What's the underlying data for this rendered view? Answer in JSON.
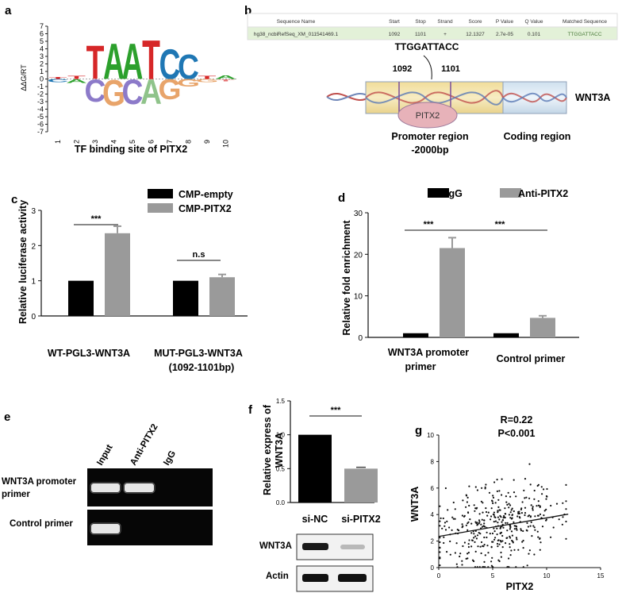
{
  "panels": {
    "a": {
      "label": "a",
      "ylabel": "ΔΔG/RT",
      "xlabel": "TF binding site of PITX2",
      "yticks": [
        "7",
        "6",
        "5",
        "4",
        "3",
        "2",
        "1",
        "0",
        "-1",
        "-2",
        "-3",
        "-4",
        "-5",
        "-6",
        "-7"
      ],
      "xticks": [
        "1",
        "2",
        "3",
        "4",
        "5",
        "6",
        "7",
        "8",
        "9",
        "10"
      ],
      "logo_top": [
        {
          "pos": 1,
          "letter": "T",
          "color": "#d62728",
          "height": 0.25
        },
        {
          "pos": 2,
          "letter": "T",
          "color": "#d62728",
          "height": 0.4
        },
        {
          "pos": 3,
          "letter": "T",
          "color": "#d62728",
          "height": 4.5
        },
        {
          "pos": 4,
          "letter": "A",
          "color": "#2ca02c",
          "height": 4.8
        },
        {
          "pos": 5,
          "letter": "A",
          "color": "#2ca02c",
          "height": 4.8
        },
        {
          "pos": 6,
          "letter": "T",
          "color": "#d62728",
          "height": 5.3
        },
        {
          "pos": 7,
          "letter": "C",
          "color": "#1f77b4",
          "height": 4.0
        },
        {
          "pos": 8,
          "letter": "C",
          "color": "#1f77b4",
          "height": 3.3
        },
        {
          "pos": 9,
          "letter": "T",
          "color": "#d62728",
          "height": 0.4
        },
        {
          "pos": 10,
          "letter": "A",
          "color": "#2ca02c",
          "height": 0.5
        }
      ],
      "logo_bottom": [
        {
          "pos": 1,
          "letter": "C",
          "color": "#1f77b4",
          "height": 0.4
        },
        {
          "pos": 2,
          "letter": "A",
          "color": "#2ca02c",
          "height": 0.5
        },
        {
          "pos": 3,
          "letter": "C",
          "color": "#8c7ac9",
          "height": 3.0
        },
        {
          "pos": 4,
          "letter": "G",
          "color": "#e8a46a",
          "height": 3.5
        },
        {
          "pos": 5,
          "letter": "C",
          "color": "#8c7ac9",
          "height": 3.3
        },
        {
          "pos": 6,
          "letter": "A",
          "color": "#8fc38a",
          "height": 3.3
        },
        {
          "pos": 7,
          "letter": "G",
          "color": "#e8a46a",
          "height": 2.7
        },
        {
          "pos": 8,
          "letter": "G",
          "color": "#e8a46a",
          "height": 1.0
        },
        {
          "pos": 9,
          "letter": "G",
          "color": "#e8a46a",
          "height": 0.4
        },
        {
          "pos": 10,
          "letter": "T",
          "color": "#e57373",
          "height": 0.3
        }
      ]
    },
    "b": {
      "label": "b",
      "table_headers": [
        "Sequence Name",
        "Start",
        "Stop",
        "Strand",
        "Score",
        "P Value",
        "Q Value",
        "Matched Sequence"
      ],
      "table_row": [
        "hg38_ncbiRefSeq_XM_011541469.1",
        "1092",
        "1101",
        "+",
        "12.1327",
        "2.7e-05",
        "0.101",
        "TTGGATTACC"
      ],
      "sequence": "TTGGATTACC",
      "start": "1092",
      "stop": "1101",
      "protein": "PITX2",
      "gene": "WNT3A",
      "promoter_label": "Promoter region",
      "promoter_size": "-2000bp",
      "coding_label": "Coding region"
    },
    "c": {
      "label": "c",
      "ylabel": "Relative luciferase activity",
      "legend": [
        "CMP-empty",
        "CMP-PITX2"
      ],
      "significance": [
        "***",
        "n.s"
      ],
      "group1_label": "WT-PGL3-WNT3A",
      "group2_label": "MUT-PGL3-WNT3A",
      "group2_sublabel": "(1092-1101bp)",
      "chart_data": {
        "type": "bar",
        "categories": [
          "WT-PGL3-WNT3A",
          "MUT-PGL3-WNT3A (1092-1101bp)"
        ],
        "series": [
          {
            "name": "CMP-empty",
            "values": [
              1.0,
              1.0
            ],
            "errors": [
              0,
              0
            ],
            "color": "#000000"
          },
          {
            "name": "CMP-PITX2",
            "values": [
              2.35,
              1.1
            ],
            "errors": [
              0.2,
              0.08
            ],
            "color": "#9a9a9a"
          }
        ],
        "ylabel": "Relative luciferase activity",
        "ylim": [
          0,
          3
        ],
        "yticks": [
          "0",
          "1",
          "2",
          "3"
        ]
      }
    },
    "d": {
      "label": "d",
      "ylabel": "Relative fold enrichment",
      "legend": [
        "IgG",
        "Anti-PITX2"
      ],
      "significance": [
        "***",
        "***"
      ],
      "group1_label": "WNT3A promoter",
      "group1_sublabel": "primer",
      "group2_label": "Control primer",
      "chart_data": {
        "type": "bar",
        "categories": [
          "WNT3A promoter primer",
          "Control primer"
        ],
        "series": [
          {
            "name": "IgG",
            "values": [
              1.0,
              1.0
            ],
            "errors": [
              0,
              0
            ],
            "color": "#000000"
          },
          {
            "name": "Anti-PITX2",
            "values": [
              21.5,
              4.7
            ],
            "errors": [
              2.5,
              0.5
            ],
            "color": "#9a9a9a"
          }
        ],
        "ylabel": "Relative fold enrichment",
        "ylim": [
          0,
          30
        ],
        "yticks": [
          "0",
          "10",
          "20",
          "30"
        ]
      }
    },
    "e": {
      "label": "e",
      "lanes": [
        "Input",
        "Anti-PITX2",
        "IgG"
      ],
      "row1_label": "WNT3A promoter",
      "row1_sublabel": "primer",
      "row2_label": "Control primer"
    },
    "f": {
      "label": "f",
      "ylabel_line1": "Relative express of",
      "ylabel_line2": "WNT3A",
      "significance": "***",
      "blot_labels": [
        "WNT3A",
        "Actin"
      ],
      "chart_data": {
        "type": "bar",
        "categories": [
          "si-NC",
          "si-PITX2"
        ],
        "values": [
          1.0,
          0.5
        ],
        "errors": [
          0,
          0.02
        ],
        "colors": [
          "#000000",
          "#9a9a9a"
        ],
        "ylabel": "Relative express of WNT3A",
        "ylim": [
          0,
          1.5
        ],
        "yticks": [
          "0.0",
          "0.5",
          "1.0",
          "1.5"
        ]
      }
    },
    "g": {
      "label": "g",
      "r_text": "R=0.22",
      "p_text": "P<0.001",
      "chart_data": {
        "type": "scatter",
        "xlabel": "PITX2",
        "ylabel": "WNT3A",
        "xlim": [
          0,
          15
        ],
        "ylim": [
          0,
          10
        ],
        "xticks": [
          "0",
          "5",
          "10",
          "15"
        ],
        "yticks": [
          "0",
          "2",
          "4",
          "6",
          "8",
          "10"
        ],
        "n_points": 400,
        "fit_line": {
          "intercept": 2.35,
          "slope": 0.14
        },
        "x_range": [
          0,
          12
        ]
      }
    }
  }
}
